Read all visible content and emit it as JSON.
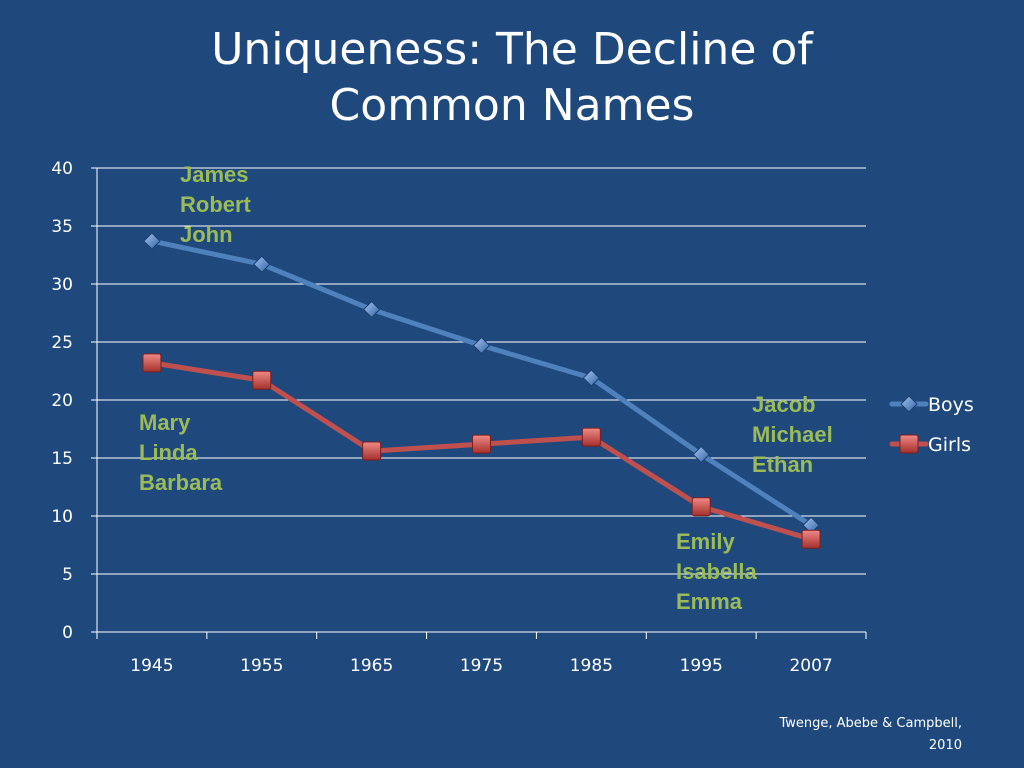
{
  "slide": {
    "title_lines": [
      "Uniqueness: The Decline of",
      "Common Names"
    ],
    "citation_lines": [
      "Twenge, Abebe & Campbell,",
      "2010"
    ]
  },
  "annotations": {
    "boys_1945": [
      "James",
      "Robert",
      "John"
    ],
    "girls_1945": [
      "Mary",
      "Linda",
      "Barbara"
    ],
    "boys_2007": [
      "Jacob",
      "Michael",
      "Ethan"
    ],
    "girls_2007": [
      "Emily",
      "Isabella",
      "Emma"
    ]
  },
  "chart_data": {
    "type": "line",
    "title": "Uniqueness: The Decline of Common Names",
    "xlabel": "",
    "ylabel": "",
    "categories": [
      "1945",
      "1955",
      "1965",
      "1975",
      "1985",
      "1995",
      "2007"
    ],
    "series": [
      {
        "name": "Boys",
        "values": [
          33.7,
          31.7,
          27.8,
          24.7,
          21.9,
          15.3,
          9.2
        ],
        "color": "#4f81bd",
        "marker": "diamond"
      },
      {
        "name": "Girls",
        "values": [
          23.2,
          21.7,
          15.6,
          16.2,
          16.8,
          10.8,
          8.0
        ],
        "color": "#c0504d",
        "marker": "square"
      }
    ],
    "ylim": [
      0,
      40
    ],
    "yticks": [
      0,
      5,
      10,
      15,
      20,
      25,
      30,
      35,
      40
    ],
    "grid": true,
    "legend_position": "right"
  },
  "colors": {
    "background": "#1f497d",
    "annotation_text": "#9bbb59",
    "axis": "#ffffff"
  }
}
